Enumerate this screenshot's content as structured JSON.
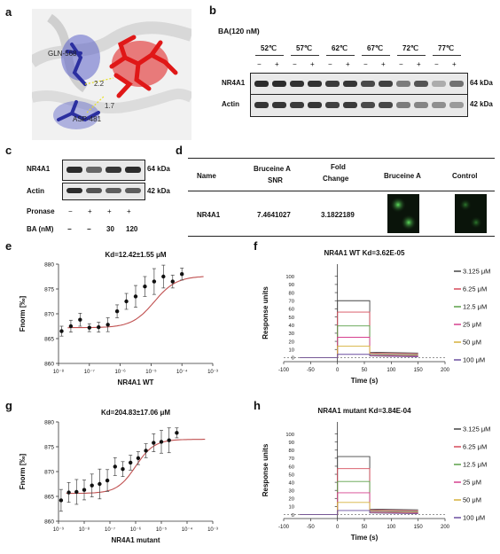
{
  "panels": {
    "a": "a",
    "b": "b",
    "c": "c",
    "d": "d",
    "e": "e",
    "f": "f",
    "g": "g",
    "h": "h"
  },
  "panel_a": {
    "label_gln": "GLN-568",
    "label_asp": "ASP-481",
    "dist1": "2.2",
    "dist2": "1.7",
    "colors": {
      "residue": "#2b2fa0",
      "ligand": "#e01818",
      "hbond": "#e8e020"
    }
  },
  "panel_b": {
    "title": "BA(120 nM)",
    "temps": [
      "52℃",
      "57℃",
      "62℃",
      "67℃",
      "72℃",
      "77℃"
    ],
    "signs": [
      "−",
      "+",
      "−",
      "+",
      "−",
      "+",
      "−",
      "+",
      "−",
      "+",
      "−",
      "+"
    ],
    "rows": [
      "NR4A1",
      "Actin"
    ],
    "sizes": [
      "64 kDa",
      "42 kDa"
    ],
    "nr4a1_intensity": [
      0.95,
      0.95,
      0.92,
      0.93,
      0.88,
      0.9,
      0.8,
      0.85,
      0.55,
      0.75,
      0.3,
      0.6
    ],
    "actin_intensity": [
      0.9,
      0.9,
      0.88,
      0.9,
      0.85,
      0.88,
      0.8,
      0.82,
      0.55,
      0.5,
      0.45,
      0.4
    ]
  },
  "panel_c": {
    "rows": [
      "NR4A1",
      "Actin"
    ],
    "sizes": [
      "64 kDa",
      "42 kDa"
    ],
    "pronase_label": "Pronase",
    "pronase": [
      "−",
      "+",
      "+",
      "+"
    ],
    "ba_label": "BA (nM)",
    "ba": [
      "−",
      "−",
      "30",
      "120"
    ]
  },
  "panel_d": {
    "headers": [
      "Name",
      "Bruceine A\nSNR",
      "Fold\nChange",
      "Bruceine A",
      "Control"
    ],
    "h_name": "Name",
    "h_snr_1": "Bruceine A",
    "h_snr_2": "SNR",
    "h_fold_1": "Fold",
    "h_fold_2": "Change",
    "h_img1": "Bruceine A",
    "h_img2": "Control",
    "row_name": "NR4A1",
    "row_snr": "7.4641027",
    "row_fold": "3.1822189"
  },
  "chart_data": [
    {
      "type": "scatter",
      "panel": "e",
      "title": "Kd=12.42±1.55 μM",
      "xlabel": "NR4A1 WT",
      "ylabel": "Fnorm [‰]",
      "xscale": "log",
      "xlim": [
        1e-08,
        0.001
      ],
      "ylim": [
        860,
        880
      ],
      "yticks": [
        860,
        865,
        870,
        875,
        880
      ],
      "xticks": [
        "10⁻⁸",
        "10⁻⁷",
        "10⁻⁶",
        "10⁻⁵",
        "10⁻⁴",
        "10⁻³"
      ],
      "x": [
        -7.9,
        -7.6,
        -7.3,
        -7.0,
        -6.7,
        -6.4,
        -6.1,
        -5.8,
        -5.5,
        -5.2,
        -4.9,
        -4.6,
        -4.3,
        -4.0
      ],
      "y": [
        866.5,
        867.5,
        868.8,
        867.2,
        867.3,
        867.8,
        870.5,
        872.5,
        873.5,
        875.5,
        876.5,
        877.5,
        876.5,
        878.0
      ],
      "yerr": [
        1.0,
        1.2,
        1.3,
        0.8,
        1.0,
        1.4,
        1.3,
        1.6,
        2.2,
        2.0,
        2.6,
        2.3,
        1.3,
        1.2
      ],
      "fit": {
        "bottom": 867.2,
        "top": 877.6,
        "logKd": -4.9
      },
      "colors": {
        "points": "#111111",
        "fit": "#c05050"
      }
    },
    {
      "type": "line",
      "panel": "f",
      "title": "NR4A1 WT   Kd=3.62E-05",
      "xlabel": "Time (s)",
      "ylabel": "Response units",
      "xlim": [
        -100,
        200
      ],
      "ylim": [
        -5,
        115
      ],
      "xticks": [
        -100,
        -50,
        0,
        50,
        100,
        150,
        200
      ],
      "yticks": [
        0,
        10,
        20,
        30,
        40,
        50,
        60,
        70,
        80,
        90,
        100
      ],
      "series": [
        {
          "name": "3.125 μM",
          "plateau": 70,
          "color": "#444444"
        },
        {
          "name": "6.25 μM",
          "plateau": 56,
          "color": "#d64b5a"
        },
        {
          "name": "12.5 μM",
          "plateau": 39,
          "color": "#5aa048"
        },
        {
          "name": "25 μM",
          "plateau": 25,
          "color": "#d6408f"
        },
        {
          "name": "50 μM",
          "plateau": 14,
          "color": "#d6b13a"
        },
        {
          "name": "100 μM",
          "plateau": 4,
          "color": "#6a4fa0"
        }
      ]
    },
    {
      "type": "scatter",
      "panel": "g",
      "title": "Kd=204.83±17.06 μM",
      "xlabel": "NR4A1 mutant",
      "ylabel": "Fnorm [‰]",
      "xscale": "log",
      "xlim": [
        1e-09,
        0.001
      ],
      "ylim": [
        860,
        880
      ],
      "yticks": [
        860,
        865,
        870,
        875,
        880
      ],
      "xticks": [
        "10⁻⁹",
        "10⁻⁸",
        "10⁻⁷",
        "10⁻⁶",
        "10⁻⁵",
        "10⁻⁴",
        "10⁻³"
      ],
      "x": [
        -8.9,
        -8.6,
        -8.3,
        -8.0,
        -7.7,
        -7.4,
        -7.1,
        -6.8,
        -6.5,
        -6.2,
        -5.9,
        -5.6,
        -5.3,
        -5.0,
        -4.7,
        -4.4
      ],
      "y": [
        864.2,
        865.8,
        865.9,
        866.3,
        867.2,
        867.5,
        868.2,
        871.0,
        870.5,
        871.8,
        872.7,
        874.2,
        875.8,
        876.0,
        876.3,
        877.8
      ],
      "yerr": [
        2.2,
        2.0,
        2.5,
        2.0,
        2.3,
        3.0,
        2.2,
        1.8,
        1.5,
        1.5,
        1.3,
        1.4,
        1.8,
        2.3,
        2.5,
        1.0
      ],
      "fit": {
        "bottom": 865.6,
        "top": 876.5,
        "logKd": -6.0
      },
      "colors": {
        "points": "#111111",
        "fit": "#c05050"
      }
    },
    {
      "type": "line",
      "panel": "h",
      "title": "NR4A1 mutant   Kd=3.84E-04",
      "xlabel": "Time (s)",
      "ylabel": "Response units",
      "xlim": [
        -100,
        200
      ],
      "ylim": [
        -5,
        115
      ],
      "xticks": [
        -100,
        -50,
        0,
        50,
        100,
        150,
        200
      ],
      "yticks": [
        0,
        10,
        20,
        30,
        40,
        50,
        60,
        70,
        80,
        90,
        100
      ],
      "series": [
        {
          "name": "3.125 μM",
          "plateau": 72,
          "color": "#444444"
        },
        {
          "name": "6.25 μM",
          "plateau": 57,
          "color": "#d64b5a"
        },
        {
          "name": "12.5 μM",
          "plateau": 41,
          "color": "#5aa048"
        },
        {
          "name": "25 μM",
          "plateau": 27,
          "color": "#d6408f"
        },
        {
          "name": "50 μM",
          "plateau": 15,
          "color": "#d6b13a"
        },
        {
          "name": "100 μM",
          "plateau": 5,
          "color": "#6a4fa0"
        }
      ]
    }
  ]
}
